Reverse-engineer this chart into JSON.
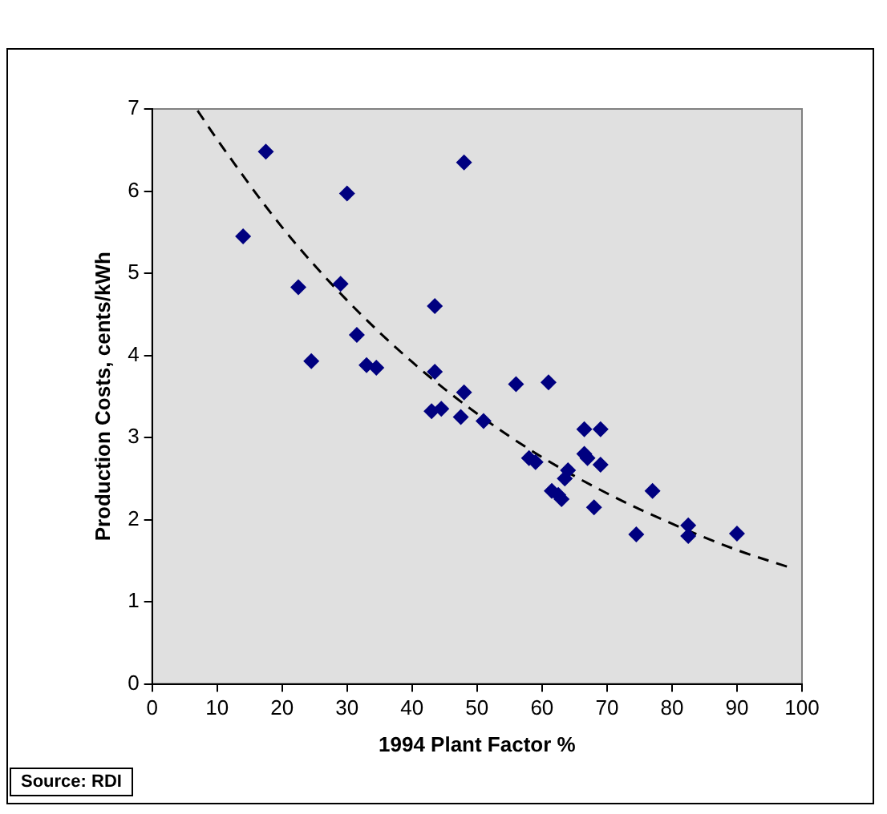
{
  "chart_data": {
    "type": "scatter",
    "xlabel": "1994 Plant Factor %",
    "ylabel": "Production Costs, cents/kWh",
    "xlim": [
      0,
      100
    ],
    "xticks": [
      0,
      10,
      20,
      30,
      40,
      50,
      60,
      70,
      80,
      90,
      100
    ],
    "ylim": [
      0,
      7
    ],
    "yticks": [
      0,
      1,
      2,
      3,
      4,
      5,
      6,
      7
    ],
    "grid": false,
    "legend": false,
    "marker": "diamond",
    "annotations": [
      "Source: RDI"
    ],
    "series": [
      {
        "color": "#000080",
        "x": [
          14,
          17.5,
          22.5,
          24.5,
          29,
          30,
          31.5,
          33,
          34.5,
          43,
          43.5,
          43.5,
          44.5,
          47.5,
          48,
          48,
          51,
          56,
          58,
          59,
          61,
          61.5,
          62.5,
          63,
          63.5,
          64,
          66.5,
          66.5,
          67,
          68,
          69,
          69,
          74.5,
          77,
          82.5,
          82.5,
          90
        ],
        "values": [
          5.45,
          6.48,
          4.83,
          3.93,
          4.87,
          5.97,
          4.25,
          3.88,
          3.85,
          3.32,
          4.6,
          3.8,
          3.35,
          3.25,
          6.35,
          3.55,
          3.2,
          3.65,
          2.75,
          2.7,
          3.67,
          2.35,
          2.3,
          2.25,
          2.5,
          2.6,
          3.1,
          2.8,
          2.75,
          2.15,
          3.1,
          2.67,
          1.82,
          2.35,
          1.93,
          1.8,
          1.83
        ]
      },
      {
        "type": "line",
        "color": "#000000",
        "line_style": "dashed",
        "marker": "none",
        "x": [
          7,
          10,
          20,
          30,
          40,
          50,
          60,
          70,
          80,
          90,
          98
        ],
        "values": [
          6.98,
          6.63,
          5.56,
          4.67,
          3.92,
          3.29,
          2.76,
          2.32,
          1.95,
          1.63,
          1.42
        ]
      }
    ]
  }
}
